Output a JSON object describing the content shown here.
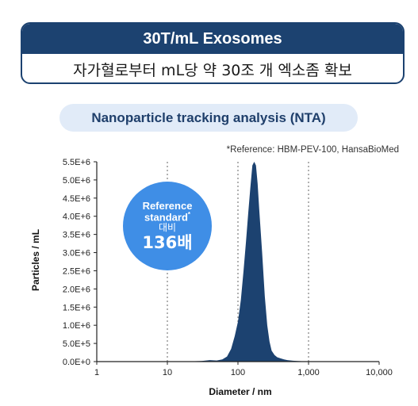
{
  "header": {
    "title": "30T/mL Exosomes",
    "subtitle": "자가혈로부터 mL당 약 30조 개 엑소좀 확보"
  },
  "section_label": "Nanoparticle tracking analysis (NTA)",
  "reference_note": "*Reference: HBM-PEV-100, HansaBioMed",
  "badge": {
    "line1": "Reference",
    "line2": "standard",
    "line2_mark": "*",
    "line3": "대비",
    "line4": "136배"
  },
  "colors": {
    "navy": "#1c4270",
    "fill": "#1c4270",
    "badge": "#3f8ee6",
    "pill": "#e1ebf8"
  },
  "chart_data": {
    "type": "area",
    "xlabel": "Diameter / nm",
    "ylabel": "Particles / mL",
    "x_scale": "log",
    "xlim": [
      1,
      10000
    ],
    "ylim": [
      0,
      5500000
    ],
    "x_ticks": [
      1,
      10,
      100,
      1000,
      10000
    ],
    "x_tick_labels": [
      "1",
      "10",
      "100",
      "1,000",
      "10,000"
    ],
    "y_ticks": [
      0,
      500000,
      1000000,
      1500000,
      2000000,
      2500000,
      3000000,
      3500000,
      4000000,
      4500000,
      5000000,
      5500000
    ],
    "y_tick_labels": [
      "0.0E+0",
      "5.0E+5",
      "1.0E+6",
      "1.5E+6",
      "2.0E+6",
      "2.5E+6",
      "3.0E+6",
      "3.5E+6",
      "4.0E+6",
      "4.5E+6",
      "5.0E+6",
      "5.5E+6"
    ],
    "grid": "vertical dotted at 10, 100, 1000",
    "series": [
      {
        "x": [
          1,
          10,
          20,
          30,
          40,
          50,
          60,
          70,
          80,
          90,
          100,
          110,
          120,
          130,
          140,
          150,
          160,
          170,
          180,
          190,
          200,
          220,
          240,
          260,
          280,
          300,
          330,
          360,
          400,
          450,
          500,
          600,
          700,
          800,
          1000,
          2000,
          10000
        ],
        "y": [
          0,
          0,
          5000,
          15000,
          40000,
          30000,
          60000,
          140000,
          350000,
          700000,
          1100000,
          1700000,
          2500000,
          3300000,
          4100000,
          4800000,
          5400000,
          5500000,
          5400000,
          4900000,
          4200000,
          3000000,
          1800000,
          1000000,
          550000,
          300000,
          180000,
          120000,
          90000,
          60000,
          40000,
          25000,
          15000,
          10000,
          5000,
          0,
          0
        ]
      }
    ]
  }
}
